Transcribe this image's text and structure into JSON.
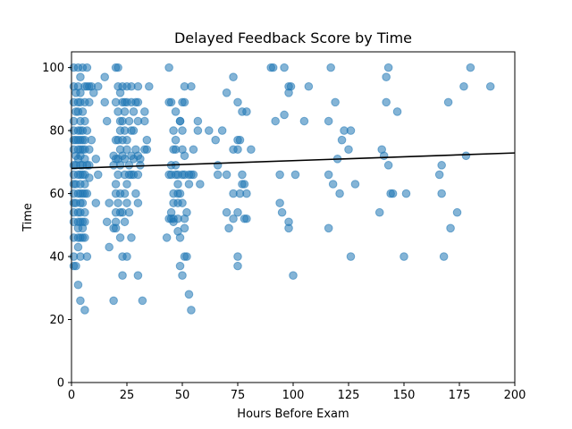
{
  "chart_data": {
    "type": "scatter",
    "title": "Delayed Feedback Score by Time",
    "xlabel": "Hours Before Exam",
    "ylabel": "Time",
    "xlim": [
      0,
      200
    ],
    "ylim": [
      0,
      105
    ],
    "xticks": [
      0,
      25,
      50,
      75,
      100,
      125,
      150,
      175,
      200
    ],
    "yticks": [
      0,
      20,
      40,
      60,
      80,
      100
    ],
    "grid": false,
    "legend": "none",
    "colors": {
      "points": "#1f77b4",
      "fit_line": "#000000"
    },
    "series": [
      {
        "kind": "points",
        "opacity": 0.55,
        "points": [
          [
            1,
            100
          ],
          [
            1,
            94
          ],
          [
            1,
            89
          ],
          [
            1,
            83
          ],
          [
            1,
            80
          ],
          [
            1,
            77
          ],
          [
            1,
            74
          ],
          [
            1,
            69
          ],
          [
            1,
            66
          ],
          [
            1,
            63
          ],
          [
            1,
            60
          ],
          [
            1,
            57
          ],
          [
            1,
            54
          ],
          [
            1,
            51
          ],
          [
            1,
            46
          ],
          [
            1,
            40
          ],
          [
            1,
            37
          ],
          [
            2,
            92
          ],
          [
            2,
            86
          ],
          [
            2,
            77
          ],
          [
            2,
            72
          ],
          [
            2,
            69
          ],
          [
            2,
            63
          ],
          [
            2,
            57
          ],
          [
            2,
            37
          ],
          [
            3,
            100
          ],
          [
            3,
            94
          ],
          [
            3,
            89
          ],
          [
            3,
            86
          ],
          [
            3,
            80
          ],
          [
            3,
            77
          ],
          [
            3,
            74
          ],
          [
            3,
            71
          ],
          [
            3,
            66
          ],
          [
            3,
            60
          ],
          [
            3,
            54
          ],
          [
            3,
            51
          ],
          [
            3,
            49
          ],
          [
            3,
            46
          ],
          [
            3,
            43
          ],
          [
            3,
            31
          ],
          [
            4,
            97
          ],
          [
            4,
            92
          ],
          [
            4,
            89
          ],
          [
            4,
            83
          ],
          [
            4,
            80
          ],
          [
            4,
            77
          ],
          [
            4,
            74
          ],
          [
            4,
            72
          ],
          [
            4,
            69
          ],
          [
            4,
            66
          ],
          [
            4,
            63
          ],
          [
            4,
            60
          ],
          [
            4,
            57
          ],
          [
            4,
            54
          ],
          [
            4,
            51
          ],
          [
            4,
            46
          ],
          [
            4,
            40
          ],
          [
            4,
            26
          ],
          [
            5,
            100
          ],
          [
            5,
            86
          ],
          [
            5,
            80
          ],
          [
            5,
            77
          ],
          [
            5,
            74
          ],
          [
            5,
            69
          ],
          [
            5,
            66
          ],
          [
            5,
            60
          ],
          [
            5,
            57
          ],
          [
            5,
            51
          ],
          [
            5,
            49
          ],
          [
            5,
            46
          ],
          [
            6,
            94
          ],
          [
            6,
            89
          ],
          [
            6,
            83
          ],
          [
            6,
            77
          ],
          [
            6,
            74
          ],
          [
            6,
            71
          ],
          [
            6,
            66
          ],
          [
            6,
            63
          ],
          [
            6,
            60
          ],
          [
            6,
            54
          ],
          [
            6,
            51
          ],
          [
            6,
            46
          ],
          [
            6,
            23
          ],
          [
            7,
            100
          ],
          [
            7,
            94
          ],
          [
            7,
            80
          ],
          [
            7,
            69
          ],
          [
            7,
            60
          ],
          [
            7,
            40
          ],
          [
            8,
            94
          ],
          [
            8,
            89
          ],
          [
            8,
            74
          ],
          [
            8,
            69
          ],
          [
            8,
            65
          ],
          [
            9,
            94
          ],
          [
            9,
            77
          ],
          [
            10,
            92
          ],
          [
            11,
            71
          ],
          [
            11,
            57
          ],
          [
            12,
            66
          ],
          [
            12,
            94
          ],
          [
            15,
            89
          ],
          [
            15,
            97
          ],
          [
            16,
            83
          ],
          [
            16,
            51
          ],
          [
            17,
            57
          ],
          [
            17,
            43
          ],
          [
            19,
            72
          ],
          [
            19,
            69
          ],
          [
            19,
            49
          ],
          [
            19,
            26
          ],
          [
            20,
            100
          ],
          [
            20,
            89
          ],
          [
            20,
            77
          ],
          [
            20,
            71
          ],
          [
            20,
            63
          ],
          [
            20,
            60
          ],
          [
            20,
            54
          ],
          [
            20,
            51
          ],
          [
            20,
            49
          ],
          [
            21,
            100
          ],
          [
            21,
            94
          ],
          [
            21,
            86
          ],
          [
            21,
            77
          ],
          [
            21,
            71
          ],
          [
            21,
            66
          ],
          [
            21,
            57
          ],
          [
            22,
            92
          ],
          [
            22,
            83
          ],
          [
            22,
            80
          ],
          [
            22,
            74
          ],
          [
            22,
            69
          ],
          [
            22,
            60
          ],
          [
            22,
            54
          ],
          [
            22,
            46
          ],
          [
            23,
            94
          ],
          [
            23,
            89
          ],
          [
            23,
            83
          ],
          [
            23,
            77
          ],
          [
            23,
            72
          ],
          [
            23,
            54
          ],
          [
            23,
            40
          ],
          [
            23,
            34
          ],
          [
            24,
            89
          ],
          [
            24,
            86
          ],
          [
            24,
            80
          ],
          [
            24,
            71
          ],
          [
            24,
            66
          ],
          [
            24,
            60
          ],
          [
            24,
            51
          ],
          [
            25,
            94
          ],
          [
            25,
            89
          ],
          [
            25,
            77
          ],
          [
            25,
            74
          ],
          [
            25,
            63
          ],
          [
            25,
            57
          ],
          [
            25,
            40
          ],
          [
            26,
            83
          ],
          [
            26,
            69
          ],
          [
            26,
            66
          ],
          [
            26,
            54
          ],
          [
            27,
            94
          ],
          [
            27,
            89
          ],
          [
            27,
            80
          ],
          [
            27,
            72
          ],
          [
            27,
            66
          ],
          [
            27,
            46
          ],
          [
            28,
            86
          ],
          [
            28,
            80
          ],
          [
            28,
            71
          ],
          [
            28,
            66
          ],
          [
            29,
            89
          ],
          [
            29,
            74
          ],
          [
            29,
            60
          ],
          [
            30,
            94
          ],
          [
            30,
            89
          ],
          [
            30,
            83
          ],
          [
            30,
            72
          ],
          [
            30,
            66
          ],
          [
            30,
            57
          ],
          [
            30,
            34
          ],
          [
            31,
            69
          ],
          [
            31,
            71
          ],
          [
            32,
            26
          ],
          [
            33,
            86
          ],
          [
            33,
            83
          ],
          [
            33,
            74
          ],
          [
            34,
            77
          ],
          [
            34,
            74
          ],
          [
            35,
            94
          ],
          [
            43,
            46
          ],
          [
            44,
            100
          ],
          [
            44,
            89
          ],
          [
            44,
            66
          ],
          [
            44,
            52
          ],
          [
            45,
            89
          ],
          [
            45,
            69
          ],
          [
            45,
            66
          ],
          [
            45,
            52
          ],
          [
            45,
            54
          ],
          [
            46,
            80
          ],
          [
            46,
            74
          ],
          [
            46,
            60
          ],
          [
            46,
            57
          ],
          [
            46,
            52
          ],
          [
            46,
            51
          ],
          [
            47,
            86
          ],
          [
            47,
            77
          ],
          [
            47,
            74
          ],
          [
            47,
            69
          ],
          [
            47,
            66
          ],
          [
            48,
            66
          ],
          [
            48,
            63
          ],
          [
            48,
            60
          ],
          [
            48,
            57
          ],
          [
            48,
            52
          ],
          [
            48,
            48
          ],
          [
            49,
            83
          ],
          [
            49,
            83
          ],
          [
            49,
            60
          ],
          [
            49,
            46
          ],
          [
            49,
            37
          ],
          [
            50,
            89
          ],
          [
            50,
            80
          ],
          [
            50,
            74
          ],
          [
            50,
            66
          ],
          [
            50,
            57
          ],
          [
            50,
            34
          ],
          [
            51,
            94
          ],
          [
            51,
            89
          ],
          [
            51,
            72
          ],
          [
            51,
            66
          ],
          [
            51,
            52
          ],
          [
            51,
            49
          ],
          [
            51,
            40
          ],
          [
            52,
            54
          ],
          [
            52,
            40
          ],
          [
            53,
            66
          ],
          [
            53,
            63
          ],
          [
            53,
            28
          ],
          [
            54,
            94
          ],
          [
            54,
            66
          ],
          [
            54,
            23
          ],
          [
            55,
            74
          ],
          [
            55,
            66
          ],
          [
            57,
            80
          ],
          [
            57,
            83
          ],
          [
            58,
            63
          ],
          [
            62,
            80
          ],
          [
            65,
            77
          ],
          [
            66,
            69
          ],
          [
            66,
            66
          ],
          [
            68,
            80
          ],
          [
            70,
            92
          ],
          [
            70,
            66
          ],
          [
            70,
            54
          ],
          [
            71,
            49
          ],
          [
            73,
            97
          ],
          [
            73,
            74
          ],
          [
            73,
            60
          ],
          [
            73,
            52
          ],
          [
            75,
            89
          ],
          [
            75,
            77
          ],
          [
            75,
            74
          ],
          [
            75,
            54
          ],
          [
            75,
            37
          ],
          [
            75,
            40
          ],
          [
            76,
            77
          ],
          [
            76,
            60
          ],
          [
            77,
            86
          ],
          [
            77,
            66
          ],
          [
            77,
            63
          ],
          [
            78,
            52
          ],
          [
            78,
            63
          ],
          [
            79,
            86
          ],
          [
            79,
            52
          ],
          [
            79,
            60
          ],
          [
            81,
            74
          ],
          [
            90,
            100
          ],
          [
            91,
            100
          ],
          [
            92,
            83
          ],
          [
            94,
            57
          ],
          [
            94,
            66
          ],
          [
            95,
            54
          ],
          [
            96,
            85
          ],
          [
            96,
            100
          ],
          [
            98,
            94
          ],
          [
            98,
            92
          ],
          [
            98,
            51
          ],
          [
            98,
            49
          ],
          [
            99,
            94
          ],
          [
            100,
            34
          ],
          [
            101,
            66
          ],
          [
            105,
            83
          ],
          [
            107,
            94
          ],
          [
            116,
            83
          ],
          [
            116,
            66
          ],
          [
            116,
            49
          ],
          [
            117,
            100
          ],
          [
            118,
            63
          ],
          [
            119,
            89
          ],
          [
            120,
            71
          ],
          [
            121,
            60
          ],
          [
            122,
            77
          ],
          [
            123,
            80
          ],
          [
            125,
            74
          ],
          [
            126,
            80
          ],
          [
            126,
            40
          ],
          [
            128,
            63
          ],
          [
            139,
            54
          ],
          [
            140,
            74
          ],
          [
            141,
            72
          ],
          [
            142,
            89
          ],
          [
            142,
            97
          ],
          [
            143,
            100
          ],
          [
            143,
            69
          ],
          [
            144,
            60
          ],
          [
            145,
            60
          ],
          [
            147,
            86
          ],
          [
            150,
            40
          ],
          [
            151,
            60
          ],
          [
            166,
            66
          ],
          [
            167,
            69
          ],
          [
            167,
            60
          ],
          [
            168,
            40
          ],
          [
            170,
            89
          ],
          [
            171,
            49
          ],
          [
            174,
            54
          ],
          [
            177,
            94
          ],
          [
            178,
            72
          ],
          [
            180,
            100
          ],
          [
            189,
            94
          ]
        ]
      },
      {
        "kind": "fit_line",
        "x": [
          0,
          200
        ],
        "y": [
          68,
          72.9
        ]
      }
    ]
  }
}
